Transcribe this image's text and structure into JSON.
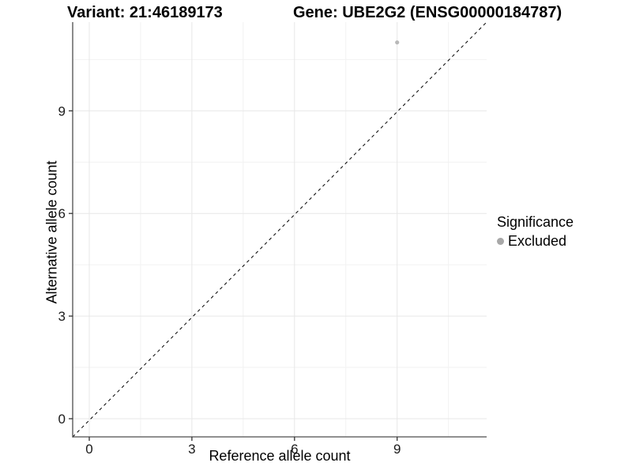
{
  "titles": {
    "variant": "Variant: 21:46189173",
    "gene": "Gene: UBE2G2 (ENSG00000184787)"
  },
  "axes": {
    "x": {
      "label": "Reference allele count",
      "tick_labels": [
        "0",
        "3",
        "6",
        "9"
      ]
    },
    "y": {
      "label": "Alternative allele count",
      "tick_labels": [
        "0",
        "3",
        "6",
        "9"
      ]
    }
  },
  "legend": {
    "title": "Significance",
    "items": [
      {
        "label": "Excluded",
        "color": "#a8a8a8"
      }
    ]
  },
  "chart_data": {
    "type": "scatter",
    "title": "Variant: 21:46189173 / Gene: UBE2G2 (ENSG00000184787)",
    "xlabel": "Reference allele count",
    "ylabel": "Alternative allele count",
    "xlim": [
      -0.55,
      11.55
    ],
    "ylim": [
      -0.55,
      11.55
    ],
    "x_ticks": [
      0,
      3,
      6,
      9
    ],
    "y_ticks": [
      0,
      3,
      6,
      9
    ],
    "x_minor": [
      1.5,
      4.5,
      7.5,
      10.5
    ],
    "y_minor": [
      1.5,
      4.5,
      7.5,
      10.5
    ],
    "grid": "major+minor",
    "legend_position": "right",
    "series": [
      {
        "name": "Excluded",
        "color": "#b9b9b9",
        "points": [
          {
            "x": 9,
            "y": 11
          }
        ]
      }
    ],
    "reference_line": {
      "style": "dashed",
      "slope": 1,
      "intercept": 0,
      "color": "#000000"
    }
  },
  "colors": {
    "background": "#ffffff",
    "axis_line": "#4d4d4d",
    "tick": "#333333",
    "tick_label": "#1a1a1a",
    "grid_major": "#e7e7e7",
    "grid_minor": "#f2f2f2",
    "ref_line": "#000000",
    "point": "#b9b9b9",
    "legend_dot": "#a8a8a8"
  }
}
